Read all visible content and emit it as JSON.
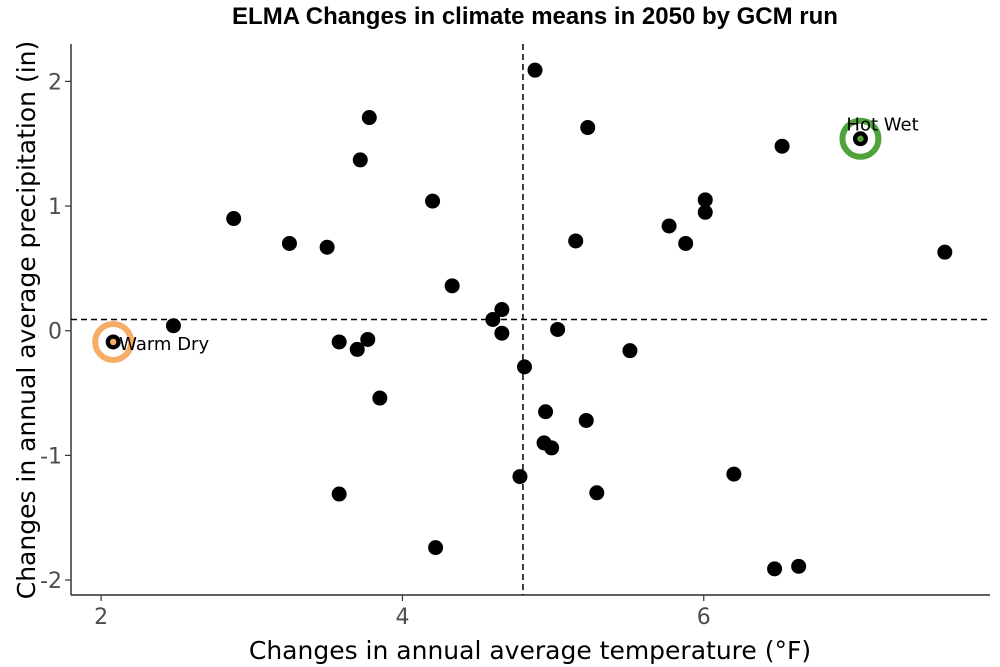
{
  "chart_data": {
    "type": "scatter",
    "title": "ELMA Changes in climate means in 2050 by GCM run",
    "xlabel": "Changes in annual average temperature (°F)",
    "ylabel": "Changes in annual average precipitation (in)",
    "xlim": [
      1.8,
      7.9
    ],
    "ylim": [
      -2.12,
      2.3
    ],
    "xticks": [
      2,
      4,
      6
    ],
    "yticks": [
      -2,
      -1,
      0,
      1,
      2
    ],
    "xtick_labels": [
      "2",
      "4",
      "6"
    ],
    "ytick_labels": [
      "-2",
      "-1",
      "0",
      "1",
      "2"
    ],
    "grid": false,
    "reference_lines": {
      "x": 4.8,
      "y": 0.09
    },
    "point_color": "#000000",
    "points": [
      {
        "x": 2.08,
        "y": -0.09
      },
      {
        "x": 2.48,
        "y": 0.04
      },
      {
        "x": 2.88,
        "y": 0.9
      },
      {
        "x": 3.25,
        "y": 0.7
      },
      {
        "x": 3.5,
        "y": 0.67
      },
      {
        "x": 3.58,
        "y": -0.09
      },
      {
        "x": 3.58,
        "y": -1.31
      },
      {
        "x": 3.7,
        "y": -0.15
      },
      {
        "x": 3.72,
        "y": 1.37
      },
      {
        "x": 3.77,
        "y": -0.07
      },
      {
        "x": 3.78,
        "y": 1.71
      },
      {
        "x": 3.85,
        "y": -0.54
      },
      {
        "x": 4.2,
        "y": 1.04
      },
      {
        "x": 4.22,
        "y": -1.74
      },
      {
        "x": 4.33,
        "y": 0.36
      },
      {
        "x": 4.6,
        "y": 0.09
      },
      {
        "x": 4.66,
        "y": 0.17
      },
      {
        "x": 4.66,
        "y": -0.02
      },
      {
        "x": 4.78,
        "y": -1.17
      },
      {
        "x": 4.81,
        "y": -0.29
      },
      {
        "x": 4.88,
        "y": 2.09
      },
      {
        "x": 4.94,
        "y": -0.9
      },
      {
        "x": 4.95,
        "y": -0.65
      },
      {
        "x": 4.99,
        "y": -0.94
      },
      {
        "x": 5.03,
        "y": 0.01
      },
      {
        "x": 5.15,
        "y": 0.72
      },
      {
        "x": 5.22,
        "y": -0.72
      },
      {
        "x": 5.23,
        "y": 1.63
      },
      {
        "x": 5.29,
        "y": -1.3
      },
      {
        "x": 5.51,
        "y": -0.16
      },
      {
        "x": 5.77,
        "y": 0.84
      },
      {
        "x": 5.88,
        "y": 0.7
      },
      {
        "x": 6.01,
        "y": 1.05
      },
      {
        "x": 6.01,
        "y": 0.95
      },
      {
        "x": 6.2,
        "y": -1.15
      },
      {
        "x": 6.47,
        "y": -1.91
      },
      {
        "x": 6.52,
        "y": 1.48
      },
      {
        "x": 6.63,
        "y": -1.89
      },
      {
        "x": 7.04,
        "y": 1.54
      },
      {
        "x": 7.6,
        "y": 0.63
      }
    ],
    "highlights": [
      {
        "x": 2.08,
        "y": -0.09,
        "label": "Warm Dry",
        "ring_color": "#f7ad65",
        "inner_color": "#f7ad65"
      },
      {
        "x": 7.04,
        "y": 1.54,
        "label": "Hot Wet",
        "ring_color": "#4ea33a",
        "inner_color": "#4ea33a"
      }
    ]
  }
}
